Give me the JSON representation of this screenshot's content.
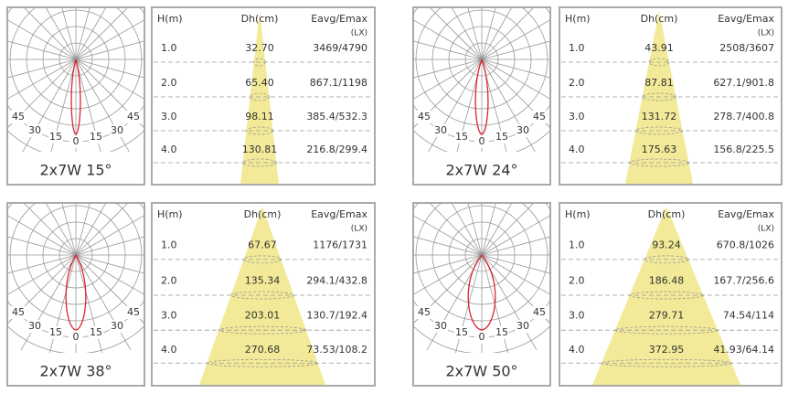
{
  "panels": [
    {
      "polar_labels": [
        "45",
        "30",
        "15",
        "0",
        "15",
        "30",
        "45"
      ],
      "caption": "2x7W 15°",
      "table": {
        "headers": [
          "H(m)",
          "Dh(cm)",
          "Eavg/Emax",
          "(LX)"
        ],
        "rows": [
          [
            "1.0",
            "32.70",
            "3469/4790"
          ],
          [
            "2.0",
            "65.40",
            "867.1/1198"
          ],
          [
            "3.0",
            "98.11",
            "385.4/532.3"
          ],
          [
            "4.0",
            "130.81",
            "216.8/299.4"
          ]
        ]
      }
    },
    {
      "polar_labels": [
        "45",
        "30",
        "15",
        "0",
        "15",
        "30",
        "45"
      ],
      "caption": "2x7W 24°",
      "table": {
        "headers": [
          "H(m)",
          "Dh(cm)",
          "Eavg/Emax",
          "(LX)"
        ],
        "rows": [
          [
            "1.0",
            "43.91",
            "2508/3607"
          ],
          [
            "2.0",
            "87.81",
            "627.1/901.8"
          ],
          [
            "3.0",
            "131.72",
            "278.7/400.8"
          ],
          [
            "4.0",
            "175.63",
            "156.8/225.5"
          ]
        ]
      }
    },
    {
      "polar_labels": [
        "45",
        "30",
        "15",
        "0",
        "15",
        "30",
        "45"
      ],
      "caption": "2x7W 38°",
      "table": {
        "headers": [
          "H(m)",
          "Dh(cm)",
          "Eavg/Emax",
          "(LX)"
        ],
        "rows": [
          [
            "1.0",
            "67.67",
            "1176/1731"
          ],
          [
            "2.0",
            "135.34",
            "294.1/432.8"
          ],
          [
            "3.0",
            "203.01",
            "130.7/192.4"
          ],
          [
            "4.0",
            "270.68",
            "73.53/108.2"
          ]
        ]
      }
    },
    {
      "polar_labels": [
        "45",
        "30",
        "15",
        "0",
        "15",
        "30",
        "45"
      ],
      "caption": "2x7W 50°",
      "table": {
        "headers": [
          "H(m)",
          "Dh(cm)",
          "Eavg/Emax",
          "(LX)"
        ],
        "rows": [
          [
            "1.0",
            "93.24",
            "670.8/1026"
          ],
          [
            "2.0",
            "186.48",
            "167.7/256.6"
          ],
          [
            "3.0",
            "279.71",
            "74.54/114"
          ],
          [
            "4.0",
            "372.95",
            "41.93/64.14"
          ]
        ]
      }
    }
  ]
}
